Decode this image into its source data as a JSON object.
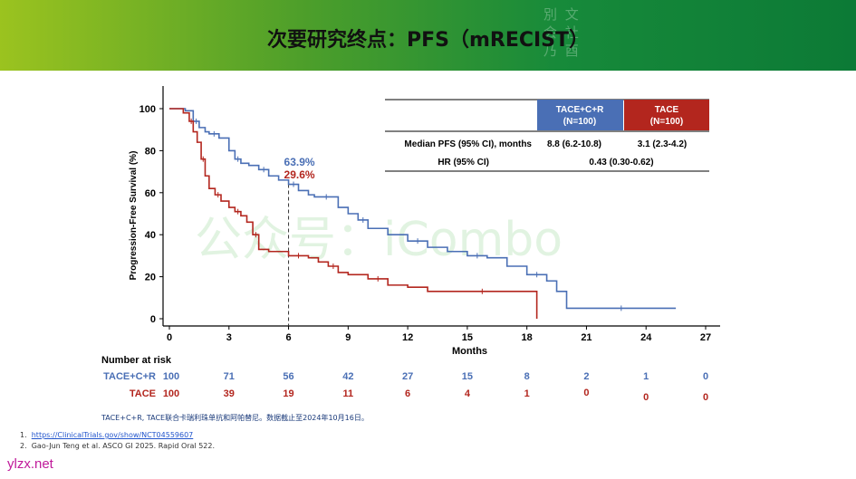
{
  "title": "次要研究终点：PFS（mRECIST）",
  "watermark": "公众号：iCombo",
  "seal_text": "別 文 会 社 乃 酉",
  "chart_data": {
    "type": "line",
    "title": "",
    "xlabel": "Months",
    "ylabel": "Progression-Free Survival (%)",
    "xlim": [
      0,
      27
    ],
    "ylim": [
      0,
      100
    ],
    "x_ticks": [
      "0",
      "3",
      "6",
      "9",
      "12",
      "15",
      "18",
      "21",
      "24",
      "27"
    ],
    "y_ticks": [
      "0",
      "20",
      "40",
      "60",
      "80",
      "100"
    ],
    "reference_line_x": 6,
    "annotations": [
      {
        "text": "63.9%",
        "color": "#4a6fb5"
      },
      {
        "text": "29.6%",
        "color": "#b3261e"
      }
    ],
    "series": [
      {
        "name": "TACE+C+R",
        "color": "#4a6fb5",
        "x": [
          0,
          0.8,
          1.2,
          1.5,
          1.8,
          2.0,
          2.5,
          3.0,
          3.3,
          3.6,
          4.0,
          4.5,
          5.0,
          5.5,
          6.0,
          6.5,
          7.0,
          7.3,
          8.5,
          9.0,
          9.5,
          10.0,
          11.0,
          12.0,
          13.0,
          14.0,
          15.0,
          16.0,
          17.0,
          18.0,
          19.0,
          19.5,
          20.0,
          25.5
        ],
        "y": [
          100,
          99,
          94,
          91,
          89,
          88,
          86,
          80,
          76,
          74,
          73,
          71,
          68,
          66,
          64,
          61,
          59,
          58,
          53,
          50,
          47,
          43,
          40,
          37,
          34,
          32,
          30,
          29,
          25,
          21,
          18,
          13,
          5,
          5
        ]
      },
      {
        "name": "TACE",
        "color": "#b3261e",
        "x": [
          0,
          0.7,
          1.0,
          1.2,
          1.4,
          1.6,
          1.8,
          2.0,
          2.3,
          2.6,
          3.0,
          3.3,
          3.6,
          3.9,
          4.2,
          4.5,
          5.0,
          6.0,
          7.0,
          7.5,
          8.0,
          8.5,
          9.0,
          10.0,
          11.0,
          12.0,
          13.0,
          18.5,
          18.5
        ],
        "y": [
          100,
          98,
          94,
          89,
          84,
          76,
          68,
          62,
          59,
          56,
          53,
          51,
          49,
          46,
          40,
          33,
          32,
          30,
          29,
          27,
          25,
          22,
          21,
          19,
          16,
          15,
          13,
          13,
          0
        ]
      }
    ],
    "summary_table": {
      "headers": [
        "TACE+C+R\n(N=100)",
        "TACE\n(N=100)"
      ],
      "header_colors": [
        "#4a6fb5",
        "#b3261e"
      ],
      "rows": [
        {
          "label": "Median PFS (95% CI), months",
          "values": [
            "8.8 (6.2-10.8)",
            "3.1 (2.3-4.2)"
          ]
        },
        {
          "label": "HR (95% CI)",
          "values": [
            "0.43 (0.30-0.62)"
          ]
        }
      ]
    },
    "number_at_risk": {
      "label": "Number at risk",
      "rows": [
        {
          "name": "TACE+C+R",
          "values": [
            "100",
            "71",
            "56",
            "42",
            "27",
            "15",
            "8",
            "2",
            "1",
            "0"
          ]
        },
        {
          "name": "TACE",
          "values": [
            "100",
            "39",
            "19",
            "11",
            "6",
            "4",
            "1",
            "0",
            "0",
            "0"
          ]
        }
      ]
    }
  },
  "footnote": "TACE+C+R, TACE联合卡瑞利珠单抗和阿帕替尼。数据截止至2024年10月16日。",
  "references": [
    {
      "num": "1.",
      "text": "https://ClinicalTrials.gov/show/NCT04559607"
    },
    {
      "num": "2.",
      "text": "Gao-Jun Teng et al. ASCO GI 2025. Rapid Oral 522."
    }
  ],
  "site": "ylzx.net"
}
